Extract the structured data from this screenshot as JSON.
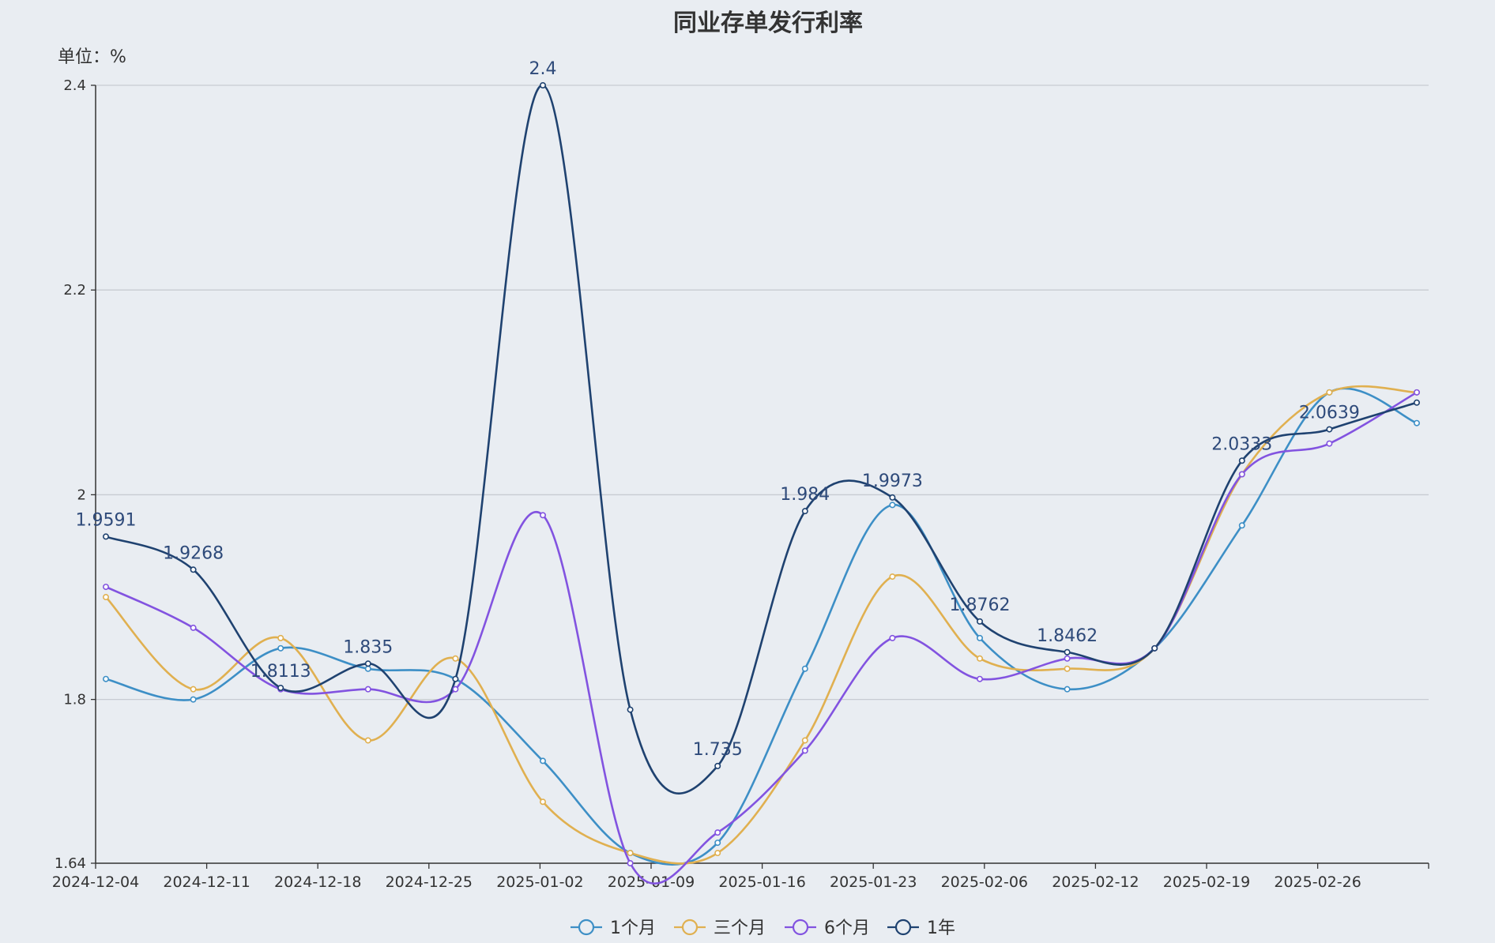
{
  "chart_data": {
    "type": "line",
    "title": "同业存单发行利率",
    "unit_label": "单位：%",
    "ylim": [
      1.64,
      2.4
    ],
    "y_ticks": [
      "1.64",
      "1.8",
      "2",
      "2.2",
      "2.4"
    ],
    "x_tick_labels": [
      "2024-12-04",
      "2024-12-11",
      "2024-12-18",
      "2024-12-25",
      "2025-01-02",
      "2025-01-09",
      "2025-01-16",
      "2025-01-23",
      "2025-02-06",
      "2025-02-12",
      "2025-02-19",
      "2025-02-26"
    ],
    "grid": true,
    "legend_position": "bottom-center",
    "series": [
      {
        "name": "1个月",
        "color": "#3d8fc6",
        "values": [
          1.82,
          1.8,
          1.85,
          1.83,
          1.82,
          1.74,
          1.65,
          1.66,
          1.83,
          1.99,
          1.86,
          1.81,
          1.85,
          1.97,
          2.1,
          2.07
        ]
      },
      {
        "name": "三个月",
        "color": "#e0b050",
        "values": [
          1.9,
          1.81,
          1.86,
          1.76,
          1.84,
          1.7,
          1.65,
          1.65,
          1.76,
          1.92,
          1.84,
          1.83,
          1.85,
          2.02,
          2.1,
          2.1
        ]
      },
      {
        "name": "6个月",
        "color": "#8253e0",
        "values": [
          1.91,
          1.87,
          1.81,
          1.81,
          1.81,
          1.98,
          1.64,
          1.67,
          1.75,
          1.86,
          1.82,
          1.84,
          1.85,
          2.02,
          2.05,
          2.1
        ]
      },
      {
        "name": "1年",
        "color": "#1f4270",
        "values": [
          1.9591,
          1.9268,
          1.8113,
          1.835,
          1.82,
          2.4,
          1.79,
          1.735,
          1.984,
          1.9973,
          1.8762,
          1.8462,
          1.85,
          2.0333,
          2.0639,
          2.09
        ]
      }
    ],
    "data_labels": [
      "1.9591",
      "1.9268",
      "1.8113",
      "1.835",
      "2.4",
      "1.735",
      "1.984",
      "1.9973",
      "1.8762",
      "1.8462",
      "2.0333",
      "2.0639"
    ]
  }
}
